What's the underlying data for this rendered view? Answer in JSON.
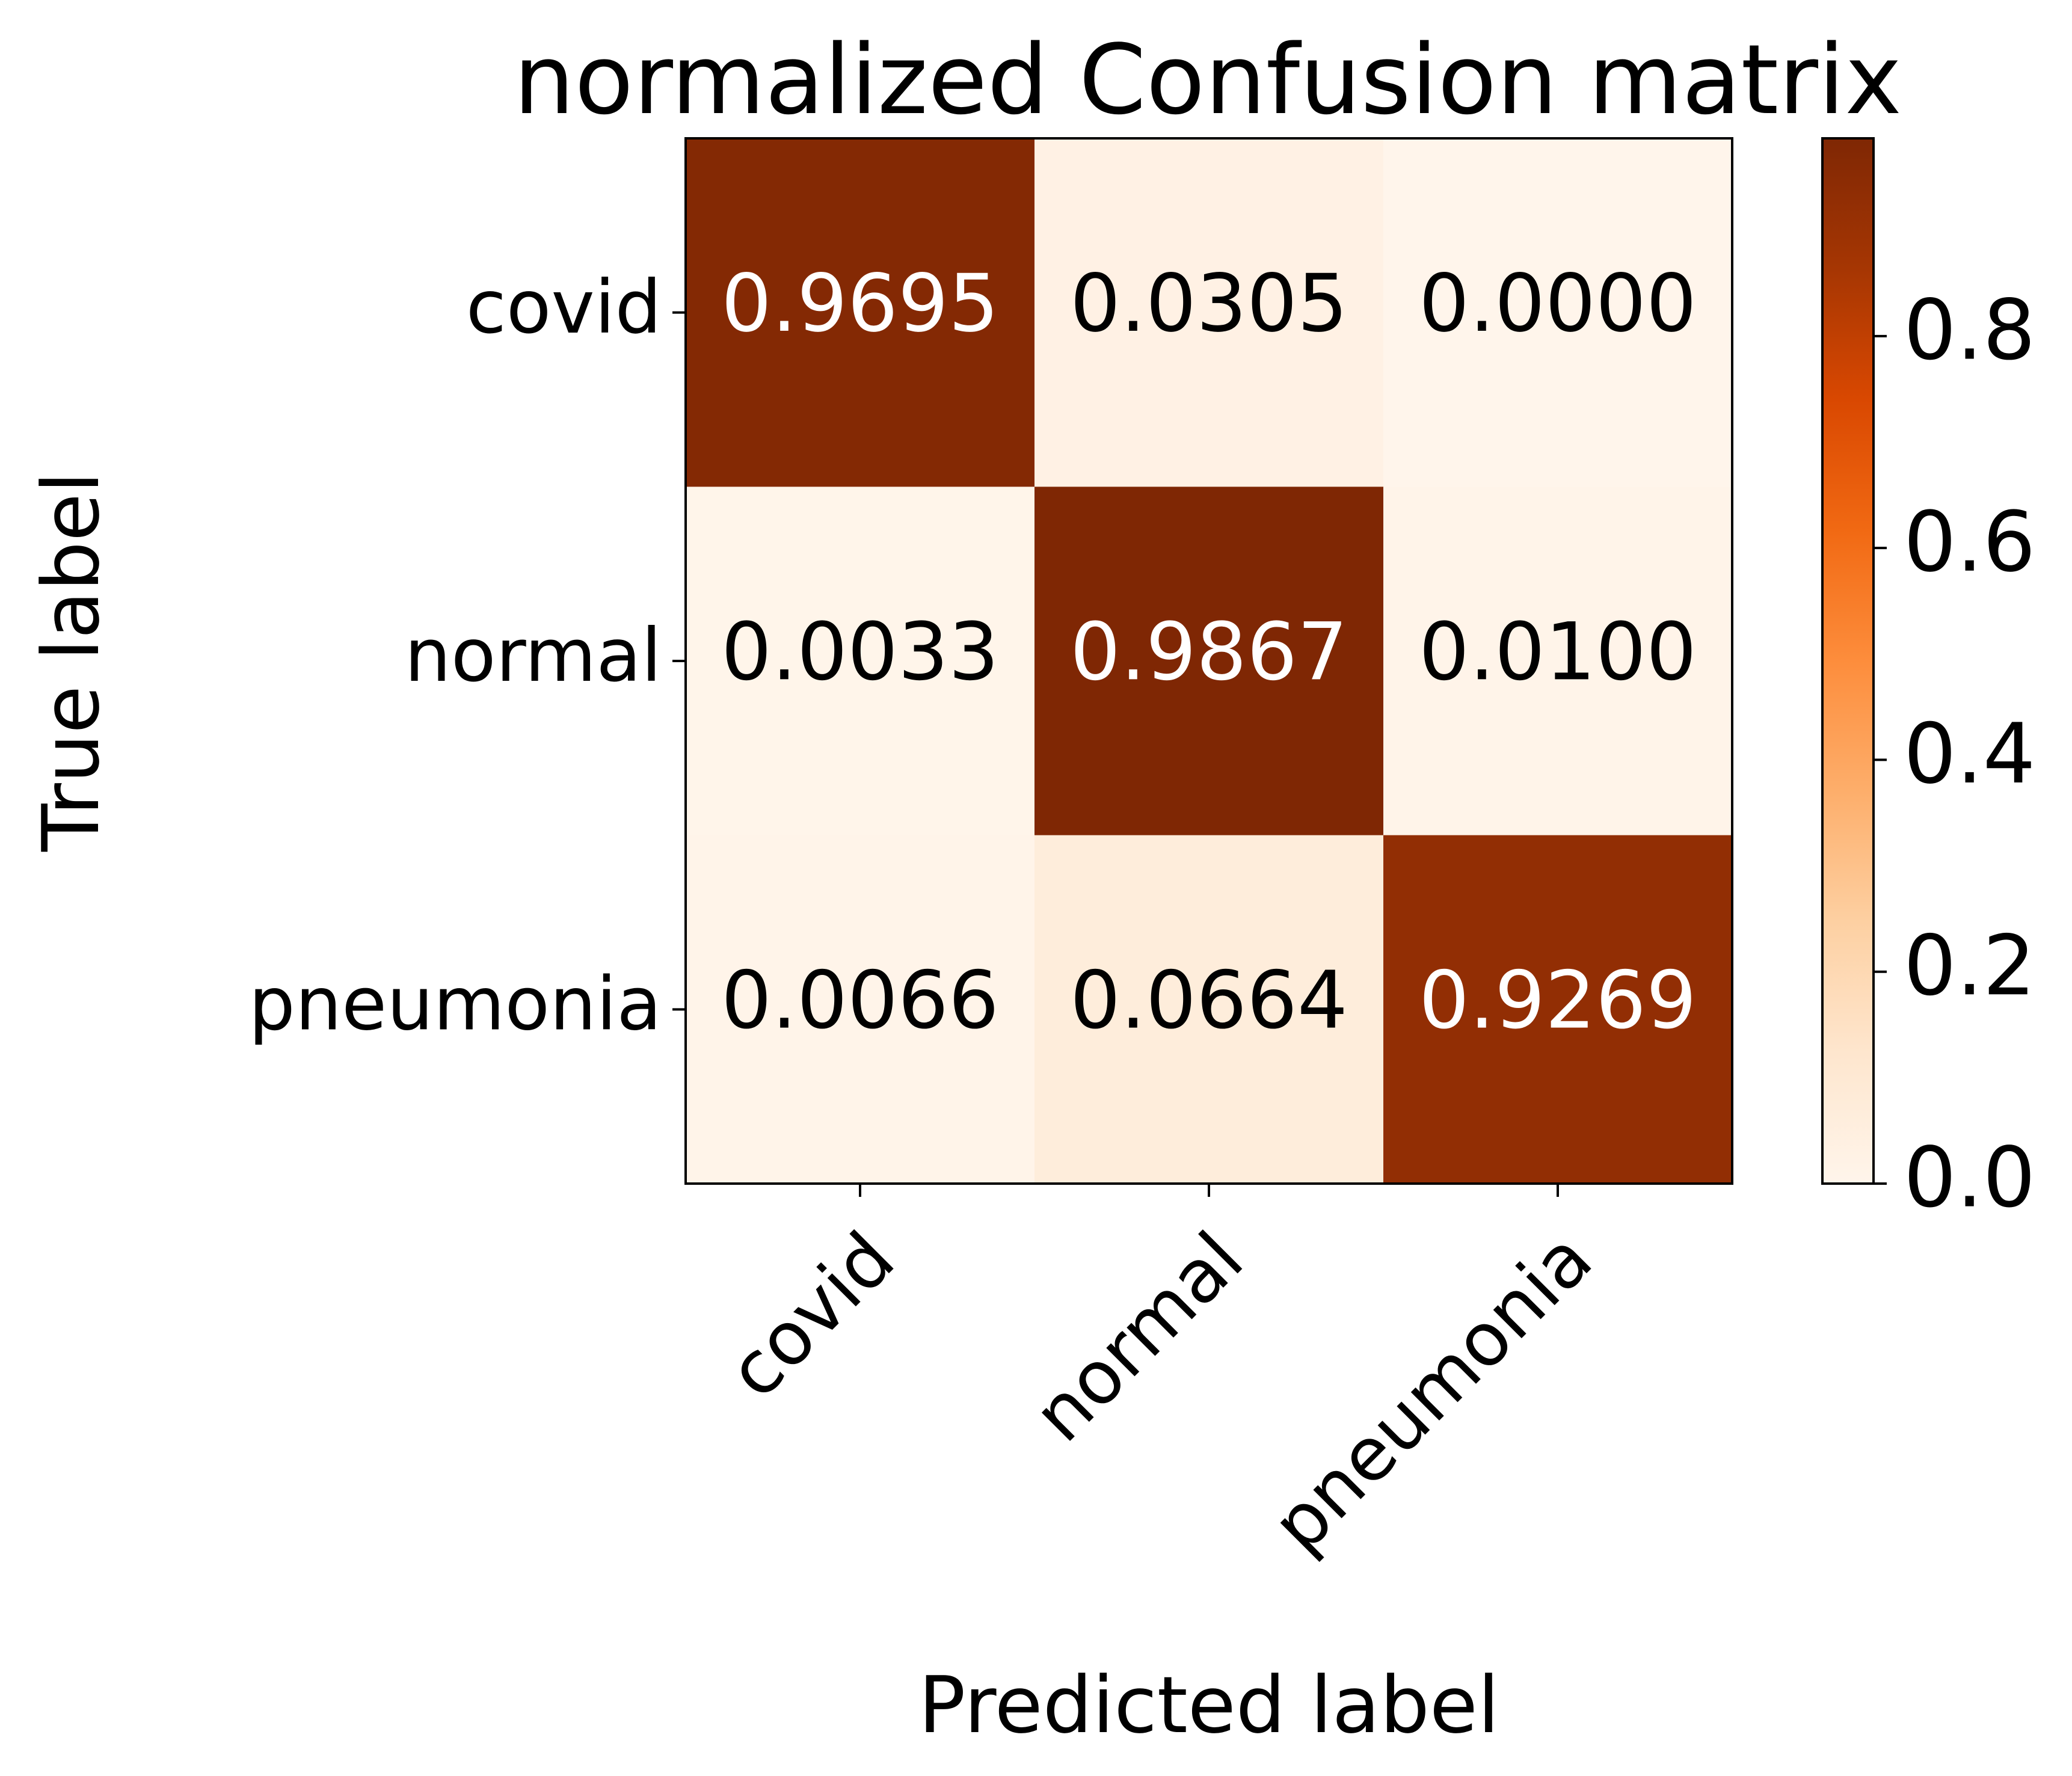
{
  "chart_data": {
    "type": "heatmap",
    "title": "normalized Confusion matrix",
    "xlabel": "Predicted label",
    "ylabel": "True label",
    "x_categories": [
      "covid",
      "normal",
      "pneumonia"
    ],
    "y_categories": [
      "covid",
      "normal",
      "pneumonia"
    ],
    "values": [
      [
        0.9695,
        0.0305,
        0.0
      ],
      [
        0.0033,
        0.9867,
        0.01
      ],
      [
        0.0066,
        0.0664,
        0.9269
      ]
    ],
    "value_labels": [
      [
        "0.9695",
        "0.0305",
        "0.0000"
      ],
      [
        "0.0033",
        "0.9867",
        "0.0100"
      ],
      [
        "0.0066",
        "0.0664",
        "0.9269"
      ]
    ],
    "colormap": "Oranges",
    "colorbar": {
      "range": [
        0,
        0.9867
      ],
      "ticks": [
        0.0,
        0.2,
        0.4,
        0.6,
        0.8
      ],
      "tick_labels": [
        "0.0",
        "0.2",
        "0.4",
        "0.6",
        "0.8"
      ]
    },
    "text_colors": {
      "on_dark": "#ffffff",
      "on_light": "#000000"
    },
    "grid": false
  }
}
